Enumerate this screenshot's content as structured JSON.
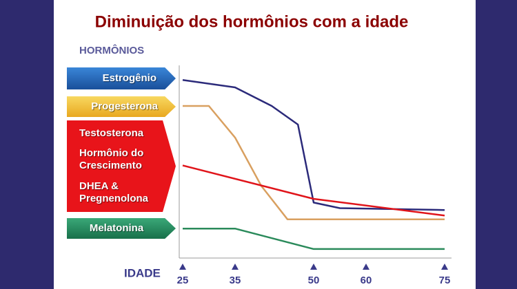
{
  "chart_data": {
    "type": "line",
    "title": "Diminuição dos hormônios com a idade",
    "y_label": "HORMÔNIOS",
    "x_label": "IDADE",
    "xlim": [
      25,
      75
    ],
    "xticks": [
      25,
      35,
      50,
      60,
      75
    ],
    "ylim": [
      0,
      100
    ],
    "series": [
      {
        "name": "Estrogênio",
        "color": "#2b2a7a",
        "x": [
          25,
          35,
          42,
          47,
          50,
          55,
          75
        ],
        "values": [
          94,
          90,
          80,
          70,
          28,
          25,
          24
        ]
      },
      {
        "name": "Progesterona",
        "color": "#d9a060",
        "x": [
          25,
          30,
          35,
          40,
          45,
          75
        ],
        "values": [
          80,
          80,
          63,
          37,
          19,
          19
        ]
      },
      {
        "name": "Testosterona",
        "extra_names": [
          "Hormônio do Crescimento",
          "DHEA & Pregnenolona"
        ],
        "color": "#e0141a",
        "x": [
          25,
          50,
          75
        ],
        "values": [
          48,
          30,
          21
        ]
      },
      {
        "name": "Melatonina",
        "color": "#2a8a5a",
        "x": [
          25,
          35,
          50,
          75
        ],
        "values": [
          14,
          14,
          3,
          3
        ]
      }
    ]
  }
}
